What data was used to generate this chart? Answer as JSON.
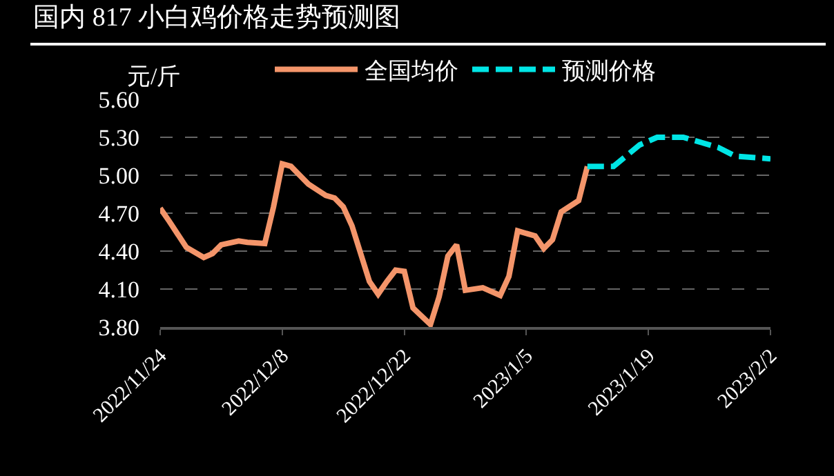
{
  "chart_data": {
    "type": "line",
    "title": "国内 817 小白鸡价格走势预测图",
    "ylabel": "元/斤",
    "series": [
      {
        "name": "全国均价",
        "color": "#f4956a",
        "line_style": "solid",
        "x": [
          "2022-11-24",
          "2022-11-25",
          "2022-11-27",
          "2022-11-29",
          "2022-11-30",
          "2022-12-01",
          "2022-12-03",
          "2022-12-04",
          "2022-12-06",
          "2022-12-07",
          "2022-12-08",
          "2022-12-09",
          "2022-12-11",
          "2022-12-13",
          "2022-12-14",
          "2022-12-15",
          "2022-12-16",
          "2022-12-18",
          "2022-12-19",
          "2022-12-20",
          "2022-12-21",
          "2022-12-22",
          "2022-12-23",
          "2022-12-25",
          "2022-12-26",
          "2022-12-27",
          "2022-12-28",
          "2022-12-29",
          "2022-12-31",
          "2023-01-02",
          "2023-01-03",
          "2023-01-04",
          "2023-01-06",
          "2023-01-07",
          "2023-01-08",
          "2023-01-09",
          "2023-01-11",
          "2023-01-12"
        ],
        "values": [
          4.74,
          4.64,
          4.43,
          4.35,
          4.38,
          4.45,
          4.48,
          4.47,
          4.46,
          4.75,
          5.09,
          5.07,
          4.93,
          4.84,
          4.82,
          4.75,
          4.6,
          4.16,
          4.06,
          4.16,
          4.25,
          4.24,
          3.95,
          3.82,
          4.04,
          4.36,
          4.45,
          4.09,
          4.11,
          4.05,
          4.2,
          4.56,
          4.52,
          4.42,
          4.49,
          4.71,
          4.8,
          5.07
        ]
      },
      {
        "name": "预测价格",
        "color": "#00e5e5",
        "line_style": "dashed",
        "x": [
          "2023-01-12",
          "2023-01-15",
          "2023-01-18",
          "2023-01-20",
          "2023-01-23",
          "2023-01-27",
          "2023-01-29",
          "2023-02-02"
        ],
        "values": [
          5.07,
          5.07,
          5.24,
          5.3,
          5.3,
          5.22,
          5.15,
          5.13
        ]
      }
    ],
    "xlim": [
      "2022-11-24",
      "2023-02-02"
    ],
    "xticks": [
      {
        "value": "2022-11-24",
        "label": "2022/11/24"
      },
      {
        "value": "2022-12-08",
        "label": "2022/12/8"
      },
      {
        "value": "2022-12-22",
        "label": "2022/12/22"
      },
      {
        "value": "2023-01-05",
        "label": "2023/1/5"
      },
      {
        "value": "2023-01-19",
        "label": "2023/1/19"
      },
      {
        "value": "2023-02-02",
        "label": "2023/2/2"
      }
    ],
    "ylim": [
      3.8,
      5.6
    ],
    "yticks": [
      {
        "value": 3.8,
        "label": "3.80"
      },
      {
        "value": 4.1,
        "label": "4.10"
      },
      {
        "value": 4.4,
        "label": "4.40"
      },
      {
        "value": 4.7,
        "label": "4.70"
      },
      {
        "value": 5.0,
        "label": "5.00"
      },
      {
        "value": 5.3,
        "label": "5.30"
      },
      {
        "value": 5.6,
        "label": "5.60"
      }
    ],
    "grid": "y",
    "legend": "top",
    "marker": "none"
  }
}
